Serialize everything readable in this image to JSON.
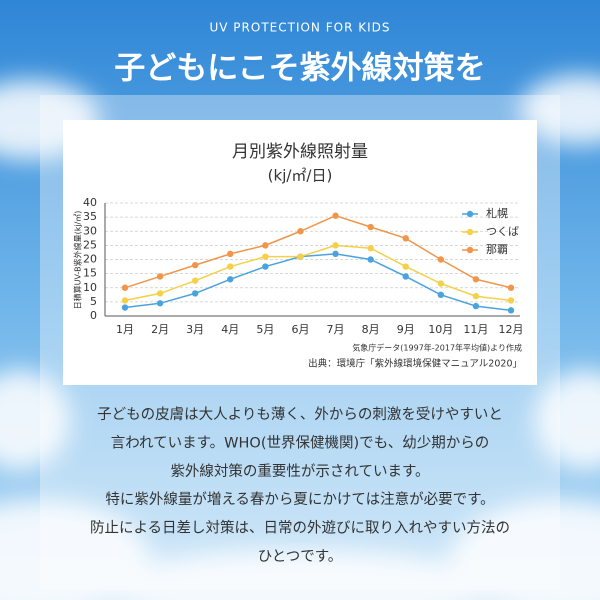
{
  "header": {
    "kicker": "UV PROTECTION FOR KIDS",
    "title": "子どもにこそ紫外線対策を"
  },
  "chart_data": {
    "type": "line",
    "title": "月別紫外線照射量",
    "subtitle": "(kj/㎡/日)",
    "y_label": "日積算UV-B紫外線量(kj/㎡)",
    "categories": [
      "1月",
      "2月",
      "3月",
      "4月",
      "5月",
      "6月",
      "7月",
      "8月",
      "9月",
      "10月",
      "11月",
      "12月"
    ],
    "series": [
      {
        "name": "札幌",
        "color": "#4aa3df",
        "values": [
          3,
          4.5,
          8,
          13,
          17.5,
          21,
          22,
          20,
          14,
          7.5,
          3.5,
          2
        ]
      },
      {
        "name": "つくば",
        "color": "#f5d04a",
        "values": [
          5.5,
          8,
          12.5,
          17.5,
          21,
          21,
          25,
          24,
          17.5,
          11.5,
          7,
          5.5
        ]
      },
      {
        "name": "那覇",
        "color": "#f0954a",
        "values": [
          10,
          14,
          18,
          22,
          25,
          30,
          35.5,
          31.5,
          27.5,
          20,
          13,
          10
        ]
      }
    ],
    "ylim": [
      0,
      40
    ],
    "yticks": [
      0,
      5,
      10,
      15,
      20,
      25,
      30,
      35,
      40
    ],
    "grid": true,
    "legend": "right",
    "note": "気象庁データ(1997年-2017年平均値)より作成",
    "source": "出典：環境庁「紫外線環境保健マニュアル2020」"
  },
  "body": {
    "lines": [
      "子どもの皮膚は大人よりも薄く、外からの刺激を受けやすいと",
      "言われています。WHO(世界保健機関)でも、幼少期からの",
      "紫外線対策の重要性が示されています。",
      "特に紫外線量が増える春から夏にかけては注意が必要です。",
      "防止による日差し対策は、日常の外遊びに取り入れやすい方法の",
      "ひとつです。"
    ]
  }
}
